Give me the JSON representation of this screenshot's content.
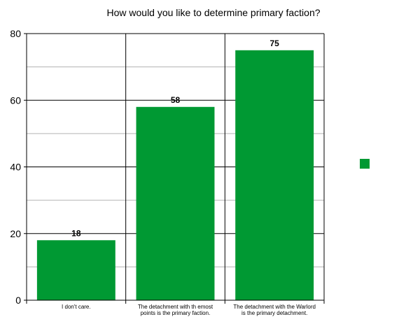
{
  "chart_data": {
    "type": "bar",
    "title": "How would you like to determine primary faction?",
    "categories": [
      [
        "I don't care."
      ],
      [
        "The detachment with th emost",
        "points is the primary faction."
      ],
      [
        "The detachment with the Warlord",
        "is the primary detachment."
      ]
    ],
    "values": [
      18,
      58,
      75
    ],
    "data_labels": [
      "18",
      "58",
      "75"
    ],
    "ylim": [
      0,
      80
    ],
    "y_major_ticks": [
      0,
      20,
      40,
      60,
      80
    ],
    "y_tick_labels": [
      "0",
      "20",
      "40",
      "60",
      "80"
    ],
    "y_minor_step": 10,
    "xlabel": "",
    "ylabel": "",
    "grid": true,
    "legend": {
      "placement": "right",
      "entries": [
        ""
      ]
    },
    "colors": {
      "bar": "#009933",
      "grid_major": "#000000",
      "grid_minor": "#b3b3b3",
      "axis": "#000000"
    }
  }
}
